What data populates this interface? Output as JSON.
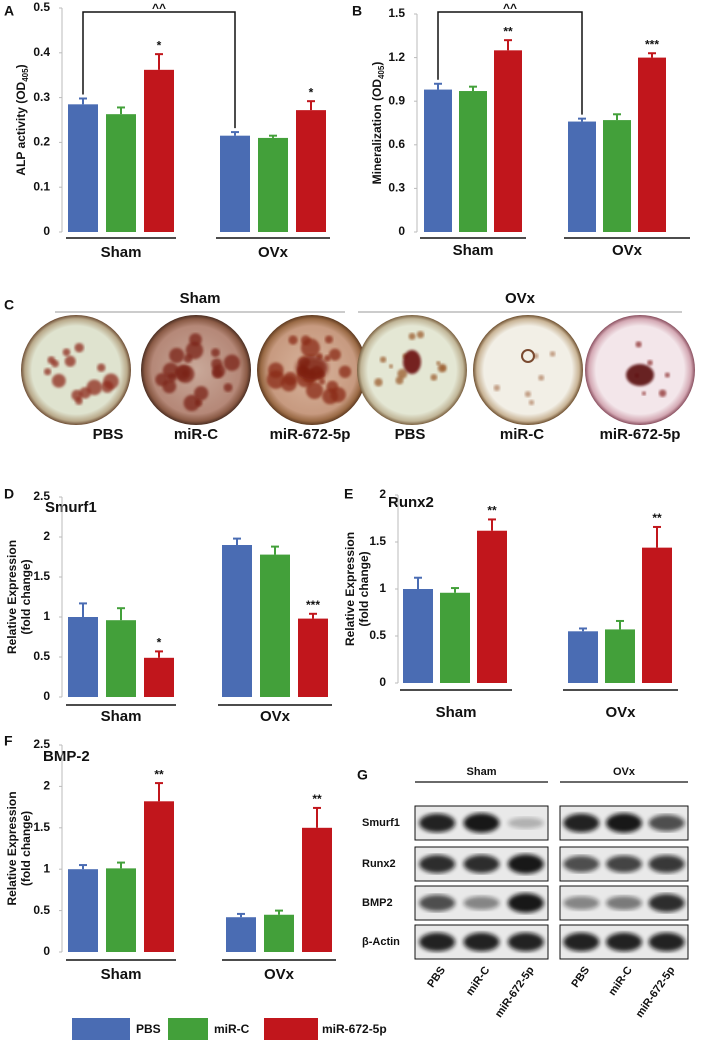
{
  "chart_data": [
    {
      "type": "bar",
      "panel": "A",
      "ylabel": [
        "ALP activity (OD",
        "405",
        ")"
      ],
      "categories": [
        "Sham",
        "OVx"
      ],
      "bracket_label": "^^",
      "series": [
        {
          "color": "#4a6cb3",
          "values": [
            0.285,
            0.215
          ],
          "errors": [
            0.013,
            0.008
          ],
          "stars": [
            null,
            null
          ]
        },
        {
          "color": "#43a03a",
          "values": [
            0.263,
            0.21
          ],
          "errors": [
            0.015,
            0.005
          ],
          "stars": [
            null,
            null
          ]
        },
        {
          "color": "#c1161c",
          "values": [
            0.362,
            0.272
          ],
          "errors": [
            0.035,
            0.02
          ],
          "stars": [
            "*",
            "*"
          ]
        }
      ],
      "ylim": [
        0,
        0.5
      ],
      "yticks": [
        0,
        0.1,
        0.2,
        0.3,
        0.4,
        0.5
      ]
    },
    {
      "type": "bar",
      "panel": "B",
      "ylabel": [
        "Mineralization (OD",
        "405",
        ")"
      ],
      "categories": [
        "Sham",
        "OVx"
      ],
      "bracket_label": "^^",
      "series": [
        {
          "color": "#4a6cb3",
          "values": [
            0.98,
            0.76
          ],
          "errors": [
            0.04,
            0.02
          ],
          "stars": [
            null,
            null
          ]
        },
        {
          "color": "#43a03a",
          "values": [
            0.97,
            0.77
          ],
          "errors": [
            0.03,
            0.04
          ],
          "stars": [
            null,
            null
          ]
        },
        {
          "color": "#c1161c",
          "values": [
            1.25,
            1.2
          ],
          "errors": [
            0.07,
            0.03
          ],
          "stars": [
            "**",
            "***"
          ]
        }
      ],
      "ylim": [
        0,
        1.5
      ],
      "yticks": [
        0,
        0.3,
        0.6,
        0.9,
        1.2,
        1.5
      ]
    },
    {
      "type": "bar",
      "panel": "D",
      "title": "Smurf1",
      "ylabel": [
        "Relative Expression",
        "(fold change)"
      ],
      "categories": [
        "Sham",
        "OVx"
      ],
      "series": [
        {
          "color": "#4a6cb3",
          "values": [
            1.0,
            1.9
          ],
          "errors": [
            0.17,
            0.08
          ],
          "stars": [
            null,
            null
          ]
        },
        {
          "color": "#43a03a",
          "values": [
            0.96,
            1.78
          ],
          "errors": [
            0.15,
            0.1
          ],
          "stars": [
            null,
            null
          ]
        },
        {
          "color": "#c1161c",
          "values": [
            0.49,
            0.98
          ],
          "errors": [
            0.08,
            0.06
          ],
          "stars": [
            "*",
            "***"
          ]
        }
      ],
      "ylim": [
        0,
        2.5
      ],
      "yticks": [
        0,
        0.5,
        1,
        1.5,
        2,
        2.5
      ]
    },
    {
      "type": "bar",
      "panel": "E",
      "title": "Runx2",
      "ylabel": [
        "Relative Expression",
        "(fold change)"
      ],
      "categories": [
        "Sham",
        "OVx"
      ],
      "series": [
        {
          "color": "#4a6cb3",
          "values": [
            1.0,
            0.55
          ],
          "errors": [
            0.12,
            0.03
          ],
          "stars": [
            null,
            null
          ]
        },
        {
          "color": "#43a03a",
          "values": [
            0.96,
            0.57
          ],
          "errors": [
            0.05,
            0.09
          ],
          "stars": [
            null,
            null
          ]
        },
        {
          "color": "#c1161c",
          "values": [
            1.62,
            1.44
          ],
          "errors": [
            0.12,
            0.22
          ],
          "stars": [
            "**",
            "**"
          ]
        }
      ],
      "ylim": [
        0,
        2
      ],
      "yticks": [
        0,
        0.5,
        1,
        1.5,
        2
      ]
    },
    {
      "type": "bar",
      "panel": "F",
      "title": "BMP-2",
      "ylabel": [
        "Relative Expression",
        "(fold change)"
      ],
      "categories": [
        "Sham",
        "OVx"
      ],
      "series": [
        {
          "color": "#4a6cb3",
          "values": [
            1.0,
            0.42
          ],
          "errors": [
            0.05,
            0.04
          ],
          "stars": [
            null,
            null
          ]
        },
        {
          "color": "#43a03a",
          "values": [
            1.01,
            0.45
          ],
          "errors": [
            0.07,
            0.05
          ],
          "stars": [
            null,
            null
          ]
        },
        {
          "color": "#c1161c",
          "values": [
            1.82,
            1.5
          ],
          "errors": [
            0.22,
            0.24
          ],
          "stars": [
            "**",
            "**"
          ]
        }
      ],
      "ylim": [
        0,
        2.5
      ],
      "yticks": [
        0,
        0.5,
        1,
        1.5,
        2,
        2.5
      ]
    }
  ],
  "legend": [
    "PBS",
    "miR-C",
    "miR-672-5p"
  ],
  "plate_staining": {
    "panel": "C",
    "groups": [
      "Sham",
      "OVx"
    ],
    "wells": [
      "PBS",
      "miR-C",
      "miR-672-5p",
      "PBS",
      "miR-C",
      "miR-672-5p"
    ]
  },
  "western_blot": {
    "panel": "G",
    "groups": [
      "Sham",
      "OVx"
    ],
    "proteins": [
      "Smurf1",
      "Runx2",
      "BMP2",
      "β-Actin"
    ],
    "lanes": [
      [
        "PBS",
        "miR-C",
        "miR-672-5p"
      ],
      [
        "PBS",
        "miR-C",
        "miR-672-5p"
      ]
    ]
  }
}
